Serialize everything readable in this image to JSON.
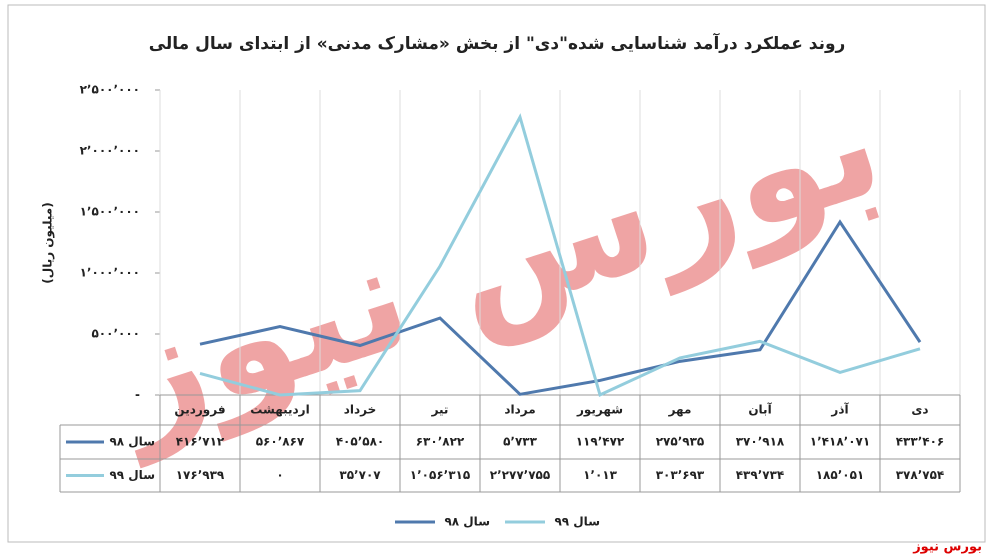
{
  "chart_data": {
    "type": "line",
    "title": "روند عملکرد درآمد شناسایی شده\"دی\" از بخش «مشارک مدنی» از ابتدای سال مالی",
    "y_label": "(میلیون ریال)",
    "categories": [
      "فروردین",
      "اردیبهشت",
      "خرداد",
      "تیر",
      "مرداد",
      "شهریور",
      "مهر",
      "آبان",
      "آذر",
      "دی"
    ],
    "series": [
      {
        "name": "سال ۹۸",
        "color": "#4f79ad",
        "values": [
          416712,
          560867,
          405580,
          630822,
          5733,
          119472,
          275935,
          370918,
          1418071,
          433406
        ],
        "value_labels": [
          "۴۱۶٬۷۱۲",
          "۵۶۰٬۸۶۷",
          "۴۰۵٬۵۸۰",
          "۶۳۰٬۸۲۲",
          "۵٬۷۳۳",
          "۱۱۹٬۴۷۲",
          "۲۷۵٬۹۳۵",
          "۳۷۰٬۹۱۸",
          "۱٬۴۱۸٬۰۷۱",
          "۴۳۳٬۴۰۶"
        ]
      },
      {
        "name": "سال ۹۹",
        "color": "#93cddd",
        "values": [
          176939,
          0,
          35707,
          1056315,
          2277755,
          1013,
          303693,
          439734,
          185051,
          378754
        ],
        "value_labels": [
          "۱۷۶٬۹۳۹",
          "۰",
          "۳۵٬۷۰۷",
          "۱٬۰۵۶٬۳۱۵",
          "۲٬۲۷۷٬۷۵۵",
          "۱٬۰۱۳",
          "۳۰۳٬۶۹۳",
          "۴۳۹٬۷۳۴",
          "۱۸۵٬۰۵۱",
          "۳۷۸٬۷۵۴"
        ]
      }
    ],
    "ylim": [
      0,
      2500000
    ],
    "yticks": [
      {
        "value": 0,
        "label": "-"
      },
      {
        "value": 500000,
        "label": "۵۰۰٬۰۰۰"
      },
      {
        "value": 1000000,
        "label": "۱٬۰۰۰٬۰۰۰"
      },
      {
        "value": 1500000,
        "label": "۱٬۵۰۰٬۰۰۰"
      },
      {
        "value": 2000000,
        "label": "۲٬۰۰۰٬۰۰۰"
      },
      {
        "value": 2500000,
        "label": "۲٬۵۰۰٬۰۰۰"
      }
    ],
    "grid": true,
    "legend": "bottom",
    "watermark": "بورس نیوز",
    "source": "بورس نیوز"
  }
}
